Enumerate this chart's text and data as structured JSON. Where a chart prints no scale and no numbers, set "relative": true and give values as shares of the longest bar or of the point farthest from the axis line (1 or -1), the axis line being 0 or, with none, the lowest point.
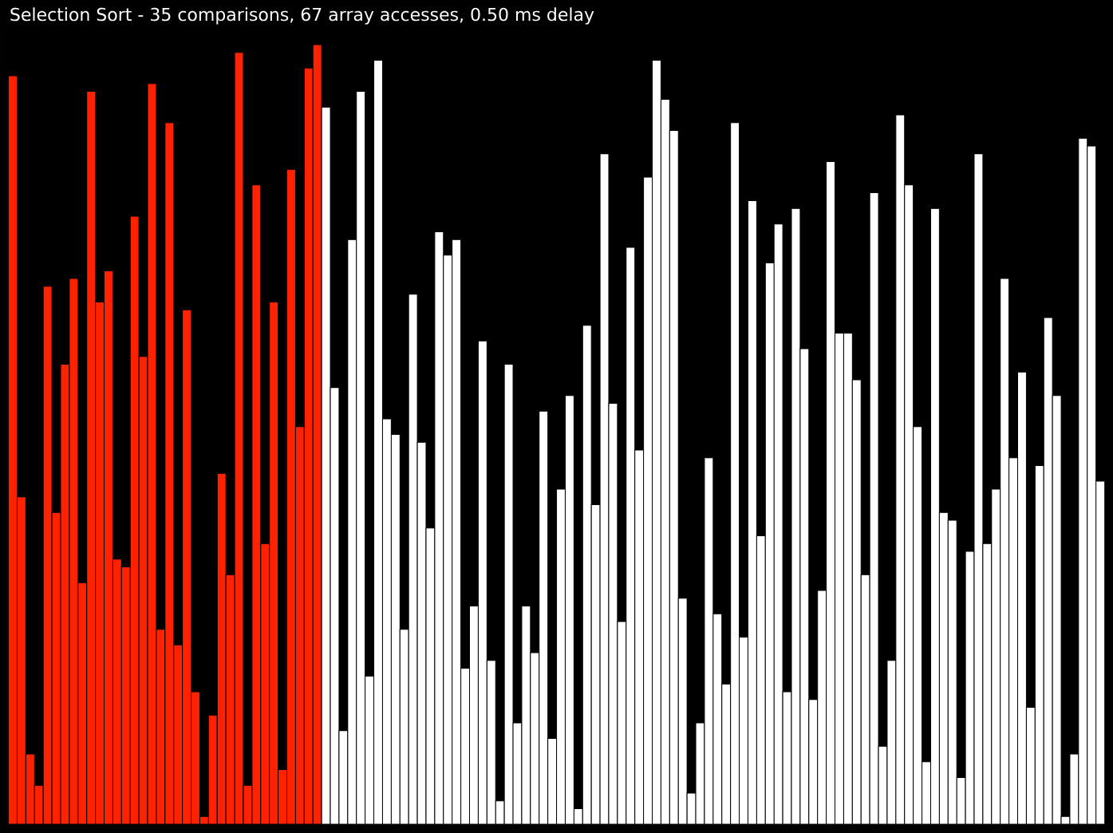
{
  "chart_data": {
    "type": "bar",
    "title": "Selection Sort - 35 comparisons, 67 array accesses, 0.50 ms delay",
    "relative": true,
    "categories": [
      null,
      null,
      null,
      null,
      null,
      null,
      null,
      null,
      null,
      null,
      null,
      null,
      null,
      null,
      null,
      null,
      null,
      null,
      null,
      null,
      null,
      null,
      null,
      null,
      null,
      null,
      null,
      null,
      null,
      null,
      null,
      null,
      null,
      null,
      null,
      null,
      null,
      null,
      null,
      null,
      null,
      null,
      null,
      null,
      null,
      null,
      null,
      null,
      null,
      null,
      null,
      null,
      null,
      null,
      null,
      null,
      null,
      null,
      null,
      null,
      null,
      null,
      null,
      null,
      null,
      null,
      null,
      null,
      null,
      null,
      null,
      null,
      null,
      null,
      null,
      null,
      null,
      null,
      null,
      null,
      null,
      null,
      null,
      null,
      null,
      null,
      null,
      null,
      null,
      null,
      null,
      null,
      null,
      null,
      null,
      null,
      null,
      null,
      null,
      null,
      null,
      null,
      null,
      null,
      null,
      null,
      null,
      null,
      null,
      null,
      null,
      null,
      null,
      null,
      null,
      null,
      null,
      null,
      null,
      null,
      null,
      null,
      null,
      null,
      null,
      null
    ],
    "values": [
      0.96,
      0.42,
      0.09,
      0.05,
      0.69,
      0.4,
      0.59,
      0.7,
      0.31,
      0.94,
      0.67,
      0.71,
      0.34,
      0.33,
      0.78,
      0.6,
      0.95,
      0.25,
      0.9,
      0.23,
      0.66,
      0.17,
      0.01,
      0.14,
      0.45,
      0.32,
      0.99,
      0.05,
      0.82,
      0.36,
      0.67,
      0.07,
      0.84,
      0.51,
      0.97,
      1,
      0.92,
      0.56,
      0.12,
      0.75,
      0.94,
      0.19,
      0.98,
      0.52,
      0.5,
      0.25,
      0.68,
      0.49,
      0.38,
      0.76,
      0.73,
      0.75,
      0.2,
      0.28,
      0.62,
      0.21,
      0.03,
      0.59,
      0.13,
      0.28,
      0.22,
      0.53,
      0.11,
      0.43,
      0.55,
      0.02,
      0.64,
      0.41,
      0.86,
      0.54,
      0.26,
      0.74,
      0.48,
      0.83,
      0.98,
      0.93,
      0.89,
      0.29,
      0.04,
      0.13,
      0.47,
      0.27,
      0.18,
      0.9,
      0.24,
      0.8,
      0.37,
      0.72,
      0.77,
      0.17,
      0.79,
      0.61,
      0.16,
      0.3,
      0.85,
      0.63,
      0.63,
      0.57,
      0.32,
      0.81,
      0.1,
      0.21,
      0.91,
      0.82,
      0.51,
      0.08,
      0.79,
      0.4,
      0.39,
      0.06,
      0.35,
      0.86,
      0.36,
      0.43,
      0.7,
      0.47,
      0.58,
      0.15,
      0.46,
      0.65,
      0.55,
      0.01,
      0.09,
      0.88,
      0.87,
      0.44
    ],
    "colors": [
      "#ff2200",
      "#ff2200",
      "#ff2200",
      "#ff2200",
      "#ff2200",
      "#ff2200",
      "#ff2200",
      "#ff2200",
      "#ff2200",
      "#ff2200",
      "#ff2200",
      "#ff2200",
      "#ff2200",
      "#ff2200",
      "#ff2200",
      "#ff2200",
      "#ff2200",
      "#ff2200",
      "#ff2200",
      "#ff2200",
      "#ff2200",
      "#ff2200",
      "#ff2200",
      "#ff2200",
      "#ff2200",
      "#ff2200",
      "#ff2200",
      "#ff2200",
      "#ff2200",
      "#ff2200",
      "#ff2200",
      "#ff2200",
      "#ff2200",
      "#ff2200",
      "#ff2200",
      "#ff2200",
      "#ffffff",
      "#ffffff",
      "#ffffff",
      "#ffffff",
      "#ffffff",
      "#ffffff",
      "#ffffff",
      "#ffffff",
      "#ffffff",
      "#ffffff",
      "#ffffff",
      "#ffffff",
      "#ffffff",
      "#ffffff",
      "#ffffff",
      "#ffffff",
      "#ffffff",
      "#ffffff",
      "#ffffff",
      "#ffffff",
      "#ffffff",
      "#ffffff",
      "#ffffff",
      "#ffffff",
      "#ffffff",
      "#ffffff",
      "#ffffff",
      "#ffffff",
      "#ffffff",
      "#ffffff",
      "#ffffff",
      "#ffffff",
      "#ffffff",
      "#ffffff",
      "#ffffff",
      "#ffffff",
      "#ffffff",
      "#ffffff",
      "#ffffff",
      "#ffffff",
      "#ffffff",
      "#ffffff",
      "#ffffff",
      "#ffffff",
      "#ffffff",
      "#ffffff",
      "#ffffff",
      "#ffffff",
      "#ffffff",
      "#ffffff",
      "#ffffff",
      "#ffffff",
      "#ffffff",
      "#ffffff",
      "#ffffff",
      "#ffffff",
      "#ffffff",
      "#ffffff",
      "#ffffff",
      "#ffffff",
      "#ffffff",
      "#ffffff",
      "#ffffff",
      "#ffffff",
      "#ffffff",
      "#ffffff",
      "#ffffff",
      "#ffffff",
      "#ffffff",
      "#ffffff",
      "#ffffff",
      "#ffffff",
      "#ffffff",
      "#ffffff",
      "#ffffff",
      "#ffffff",
      "#ffffff",
      "#ffffff",
      "#ffffff",
      "#ffffff",
      "#ffffff",
      "#ffffff",
      "#ffffff",
      "#ffffff",
      "#ffffff",
      "#ffffff",
      "#ffffff",
      "#ffffff",
      "#ffffff",
      "#ffffff"
    ]
  }
}
